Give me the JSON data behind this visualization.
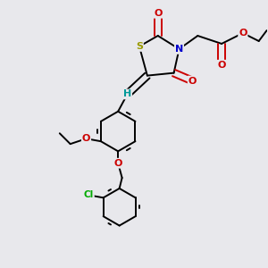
{
  "background_color": "#e8e8ec",
  "atom_colors": {
    "S": "#999900",
    "N": "#0000cc",
    "O": "#cc0000",
    "C": "#000000",
    "H": "#009999",
    "Cl": "#00aa00"
  },
  "bond_color": "#000000",
  "figsize": [
    3.0,
    3.0
  ],
  "dpi": 100
}
